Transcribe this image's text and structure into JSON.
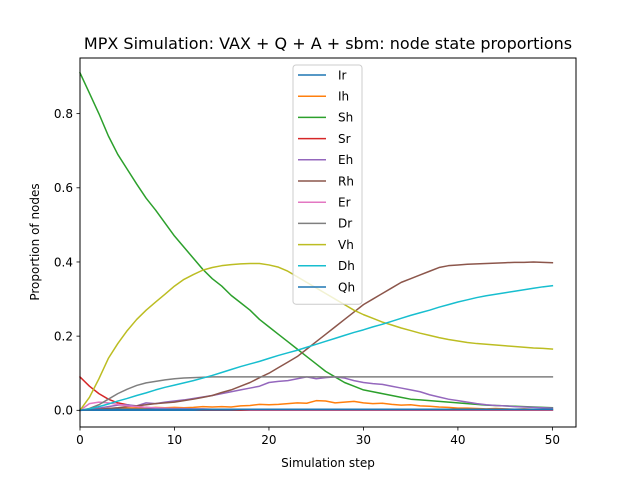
{
  "chart_data": {
    "type": "line",
    "title": "MPX Simulation: VAX + Q + A + sbm: node state proportions",
    "xlabel": "Simulation step",
    "ylabel": "Proportion of nodes",
    "xlim": [
      0,
      52.5
    ],
    "ylim": [
      -0.045,
      0.95
    ],
    "xticks": [
      0,
      10,
      20,
      30,
      40,
      50
    ],
    "yticks": [
      0.0,
      0.2,
      0.4,
      0.6,
      0.8
    ],
    "xtick_labels": [
      "0",
      "10",
      "20",
      "30",
      "40",
      "50"
    ],
    "ytick_labels": [
      "0.0",
      "0.2",
      "0.4",
      "0.6",
      "0.8"
    ],
    "legend_position": "upper-center",
    "grid": false,
    "x": [
      0,
      1,
      2,
      3,
      4,
      5,
      6,
      7,
      8,
      9,
      10,
      11,
      12,
      13,
      14,
      15,
      16,
      17,
      18,
      19,
      20,
      21,
      22,
      23,
      24,
      25,
      26,
      27,
      28,
      29,
      30,
      31,
      32,
      33,
      34,
      35,
      36,
      37,
      38,
      39,
      40,
      41,
      42,
      43,
      44,
      45,
      46,
      47,
      48,
      49,
      50
    ],
    "series": [
      {
        "name": "Ir",
        "color": "#1f77b4",
        "values": [
          0,
          0,
          0,
          0,
          0,
          0,
          0,
          0,
          0,
          0,
          0,
          0,
          0,
          0,
          0,
          0,
          0,
          0,
          0,
          0,
          0,
          0,
          0,
          0,
          0,
          0,
          0,
          0,
          0,
          0,
          0,
          0,
          0,
          0,
          0,
          0,
          0,
          0,
          0,
          0,
          0,
          0,
          0,
          0,
          0,
          0,
          0,
          0,
          0,
          0,
          0
        ]
      },
      {
        "name": "Ih",
        "color": "#ff7f0e",
        "values": [
          0,
          0.002,
          0.004,
          0.005,
          0.006,
          0.006,
          0.007,
          0.006,
          0.008,
          0.007,
          0.008,
          0.007,
          0.008,
          0.01,
          0.009,
          0.01,
          0.009,
          0.012,
          0.013,
          0.016,
          0.015,
          0.016,
          0.018,
          0.02,
          0.019,
          0.026,
          0.025,
          0.02,
          0.022,
          0.024,
          0.02,
          0.018,
          0.019,
          0.016,
          0.014,
          0.015,
          0.012,
          0.011,
          0.009,
          0.008,
          0.006,
          0.006,
          0.005,
          0.004,
          0.005,
          0.004,
          0.003,
          0.004,
          0.003,
          0.003,
          0.003
        ]
      },
      {
        "name": "Sh",
        "color": "#2ca02c",
        "values": [
          0.91,
          0.855,
          0.8,
          0.74,
          0.69,
          0.65,
          0.61,
          0.572,
          0.54,
          0.505,
          0.47,
          0.44,
          0.41,
          0.38,
          0.355,
          0.335,
          0.31,
          0.29,
          0.27,
          0.245,
          0.225,
          0.205,
          0.185,
          0.165,
          0.145,
          0.125,
          0.105,
          0.09,
          0.075,
          0.065,
          0.055,
          0.05,
          0.045,
          0.04,
          0.035,
          0.03,
          0.028,
          0.026,
          0.024,
          0.022,
          0.02,
          0.018,
          0.016,
          0.014,
          0.013,
          0.012,
          0.011,
          0.01,
          0.009,
          0.008,
          0.007
        ]
      },
      {
        "name": "Sr",
        "color": "#d62728",
        "values": [
          0.09,
          0.065,
          0.045,
          0.03,
          0.02,
          0.015,
          0.01,
          0.008,
          0.006,
          0.005,
          0.004,
          0.003,
          0.003,
          0.002,
          0.002,
          0.002,
          0.002,
          0.001,
          0.001,
          0.001,
          0.001,
          0.001,
          0.001,
          0.001,
          0.001,
          0.001,
          0.001,
          0.001,
          0.001,
          0.001,
          0.001,
          0.001,
          0.001,
          0.001,
          0.001,
          0.001,
          0.001,
          0.001,
          0.001,
          0.001,
          0.001,
          0.001,
          0.001,
          0.001,
          0.001,
          0.001,
          0.001,
          0.001,
          0.001,
          0.001,
          0.001
        ]
      },
      {
        "name": "Eh",
        "color": "#9467bd",
        "values": [
          0,
          0.002,
          0.006,
          0.01,
          0.014,
          0.015,
          0.012,
          0.02,
          0.018,
          0.022,
          0.025,
          0.028,
          0.032,
          0.036,
          0.04,
          0.045,
          0.05,
          0.055,
          0.06,
          0.065,
          0.075,
          0.078,
          0.08,
          0.085,
          0.09,
          0.085,
          0.088,
          0.09,
          0.087,
          0.08,
          0.075,
          0.072,
          0.07,
          0.065,
          0.06,
          0.055,
          0.05,
          0.042,
          0.036,
          0.03,
          0.026,
          0.022,
          0.018,
          0.015,
          0.013,
          0.012,
          0.01,
          0.009,
          0.008,
          0.007,
          0.006
        ]
      },
      {
        "name": "Rh",
        "color": "#8c564b",
        "values": [
          0,
          0.001,
          0.003,
          0.005,
          0.007,
          0.01,
          0.012,
          0.015,
          0.018,
          0.02,
          0.022,
          0.026,
          0.03,
          0.035,
          0.04,
          0.048,
          0.055,
          0.065,
          0.075,
          0.088,
          0.1,
          0.115,
          0.13,
          0.145,
          0.165,
          0.185,
          0.205,
          0.225,
          0.245,
          0.265,
          0.285,
          0.3,
          0.315,
          0.33,
          0.345,
          0.355,
          0.365,
          0.375,
          0.385,
          0.39,
          0.392,
          0.394,
          0.395,
          0.396,
          0.397,
          0.398,
          0.399,
          0.399,
          0.4,
          0.399,
          0.398
        ]
      },
      {
        "name": "Er",
        "color": "#e377c2",
        "values": [
          0,
          0.018,
          0.022,
          0.02,
          0.016,
          0.012,
          0.01,
          0.008,
          0.007,
          0.006,
          0.005,
          0.005,
          0.004,
          0.004,
          0.003,
          0.003,
          0.003,
          0.003,
          0.002,
          0.002,
          0.002,
          0.002,
          0.002,
          0.002,
          0.002,
          0.002,
          0.002,
          0.002,
          0.002,
          0.002,
          0.002,
          0.002,
          0.002,
          0.002,
          0.002,
          0.002,
          0.002,
          0.002,
          0.002,
          0.002,
          0.002,
          0.002,
          0.002,
          0.002,
          0.002,
          0.002,
          0.002,
          0.002,
          0.002,
          0.002,
          0.002
        ]
      },
      {
        "name": "Dr",
        "color": "#7f7f7f",
        "values": [
          0,
          0.005,
          0.015,
          0.03,
          0.045,
          0.057,
          0.067,
          0.074,
          0.078,
          0.082,
          0.085,
          0.087,
          0.088,
          0.089,
          0.09,
          0.09,
          0.09,
          0.09,
          0.09,
          0.09,
          0.09,
          0.09,
          0.09,
          0.09,
          0.09,
          0.09,
          0.09,
          0.09,
          0.09,
          0.09,
          0.09,
          0.09,
          0.09,
          0.09,
          0.09,
          0.09,
          0.09,
          0.09,
          0.09,
          0.09,
          0.09,
          0.09,
          0.09,
          0.09,
          0.09,
          0.09,
          0.09,
          0.09,
          0.09,
          0.09,
          0.09
        ]
      },
      {
        "name": "Vh",
        "color": "#bcbd22",
        "values": [
          0,
          0.035,
          0.085,
          0.14,
          0.18,
          0.215,
          0.245,
          0.27,
          0.292,
          0.313,
          0.335,
          0.353,
          0.366,
          0.378,
          0.385,
          0.39,
          0.393,
          0.395,
          0.396,
          0.396,
          0.392,
          0.386,
          0.375,
          0.36,
          0.345,
          0.33,
          0.315,
          0.3,
          0.285,
          0.27,
          0.258,
          0.248,
          0.238,
          0.23,
          0.222,
          0.215,
          0.208,
          0.202,
          0.196,
          0.191,
          0.187,
          0.183,
          0.18,
          0.178,
          0.176,
          0.174,
          0.172,
          0.17,
          0.168,
          0.167,
          0.165
        ]
      },
      {
        "name": "Dh",
        "color": "#17becf",
        "values": [
          0,
          0.004,
          0.01,
          0.017,
          0.025,
          0.032,
          0.04,
          0.047,
          0.055,
          0.062,
          0.068,
          0.074,
          0.08,
          0.087,
          0.094,
          0.102,
          0.11,
          0.118,
          0.125,
          0.132,
          0.14,
          0.148,
          0.155,
          0.162,
          0.17,
          0.178,
          0.186,
          0.194,
          0.202,
          0.21,
          0.217,
          0.225,
          0.232,
          0.24,
          0.248,
          0.256,
          0.263,
          0.27,
          0.278,
          0.285,
          0.292,
          0.298,
          0.304,
          0.309,
          0.313,
          0.317,
          0.321,
          0.325,
          0.329,
          0.333,
          0.336
        ]
      },
      {
        "name": "Qh",
        "color": "#1f77b4",
        "values": [
          0,
          0.001,
          0.002,
          0.002,
          0.003,
          0.003,
          0.003,
          0.003,
          0.003,
          0.003,
          0.003,
          0.003,
          0.003,
          0.003,
          0.003,
          0.003,
          0.003,
          0.003,
          0.003,
          0.003,
          0.003,
          0.003,
          0.003,
          0.003,
          0.003,
          0.003,
          0.003,
          0.003,
          0.003,
          0.003,
          0.003,
          0.003,
          0.003,
          0.003,
          0.003,
          0.003,
          0.003,
          0.003,
          0.003,
          0.003,
          0.003,
          0.003,
          0.003,
          0.003,
          0.003,
          0.003,
          0.003,
          0.003,
          0.003,
          0.003,
          0.003
        ]
      }
    ]
  }
}
